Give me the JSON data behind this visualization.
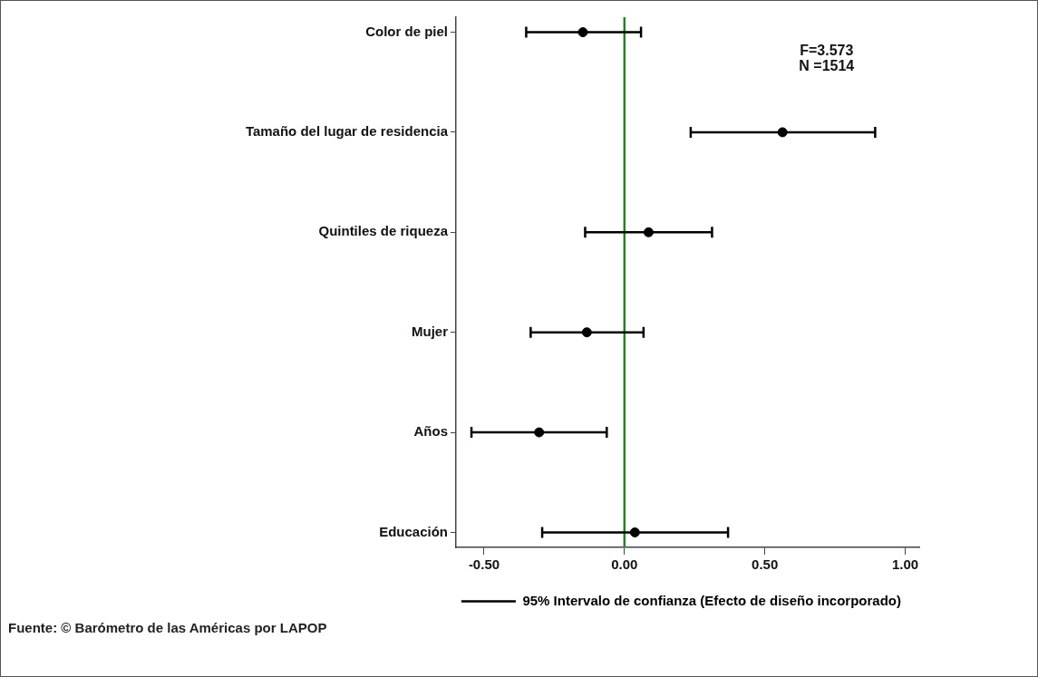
{
  "chart_data": {
    "type": "scatter",
    "orientation": "horizontal",
    "categories": [
      "Color de piel",
      "Tamaño del lugar de residencia",
      "Quintiles de riqueza",
      "Mujer",
      "Años",
      "Educación"
    ],
    "series": [
      {
        "name": "95% Intervalo de confianza (Efecto de diseño incorporado)",
        "color": "#000000",
        "values": [
          -0.148,
          0.563,
          0.086,
          -0.134,
          -0.304,
          0.037
        ],
        "errors": [
          [
            -0.35,
            0.059
          ],
          [
            0.236,
            0.893
          ],
          [
            -0.14,
            0.312
          ],
          [
            -0.334,
            0.068
          ],
          [
            -0.545,
            -0.063
          ],
          [
            -0.293,
            0.369
          ]
        ]
      }
    ],
    "xlim": [
      -0.6,
      1.05
    ],
    "xticks": [
      {
        "value": -0.5,
        "label": "-0.50"
      },
      {
        "value": 0,
        "label": "0.00"
      },
      {
        "value": 0.5,
        "label": "0.50"
      },
      {
        "value": 1,
        "label": "1.00"
      }
    ],
    "ref_lines": [
      {
        "axis": "x",
        "value": 0,
        "color": "#1a8a1a"
      }
    ],
    "annotations": [
      "F=3.573",
      "N =1514",
      "Fuente: © Barómetro de las Américas por LAPOP"
    ],
    "marker": "circle",
    "grid": false,
    "legend": "bottom"
  }
}
